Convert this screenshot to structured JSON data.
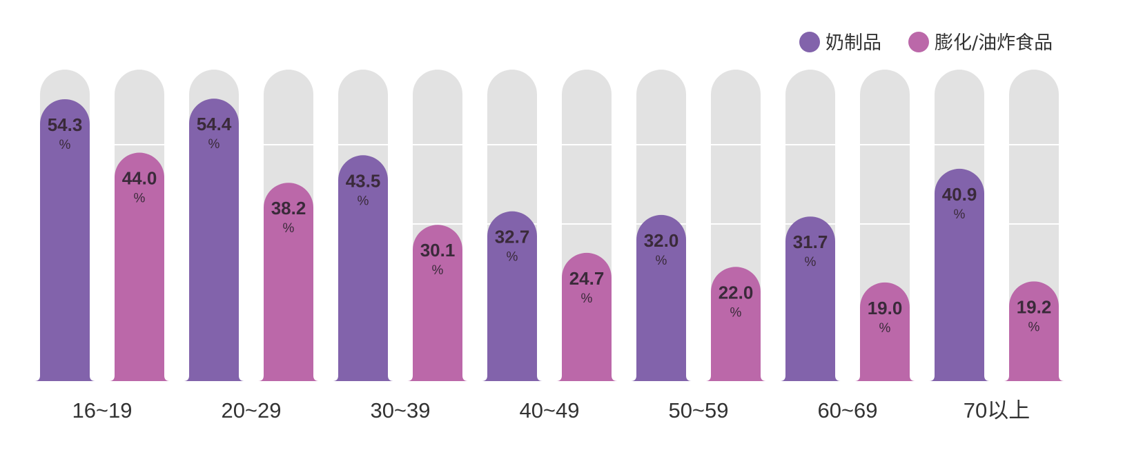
{
  "chart_data": {
    "type": "bar",
    "categories": [
      "16~19",
      "20~29",
      "30~39",
      "40~49",
      "50~59",
      "60~69",
      "70以上"
    ],
    "series": [
      {
        "name": "奶制品",
        "values": [
          54.3,
          54.4,
          43.5,
          32.7,
          32.0,
          31.7,
          40.9
        ],
        "color": "#8263ab"
      },
      {
        "name": "膨化/油炸食品",
        "values": [
          44.0,
          38.2,
          30.1,
          24.7,
          22.0,
          19.0,
          19.2
        ],
        "color": "#bb68a9"
      }
    ],
    "value_unit": "%",
    "ylim": [
      0,
      60
    ],
    "legend_position": "top-right",
    "track_color": "#e2e2e2",
    "grid": true
  }
}
